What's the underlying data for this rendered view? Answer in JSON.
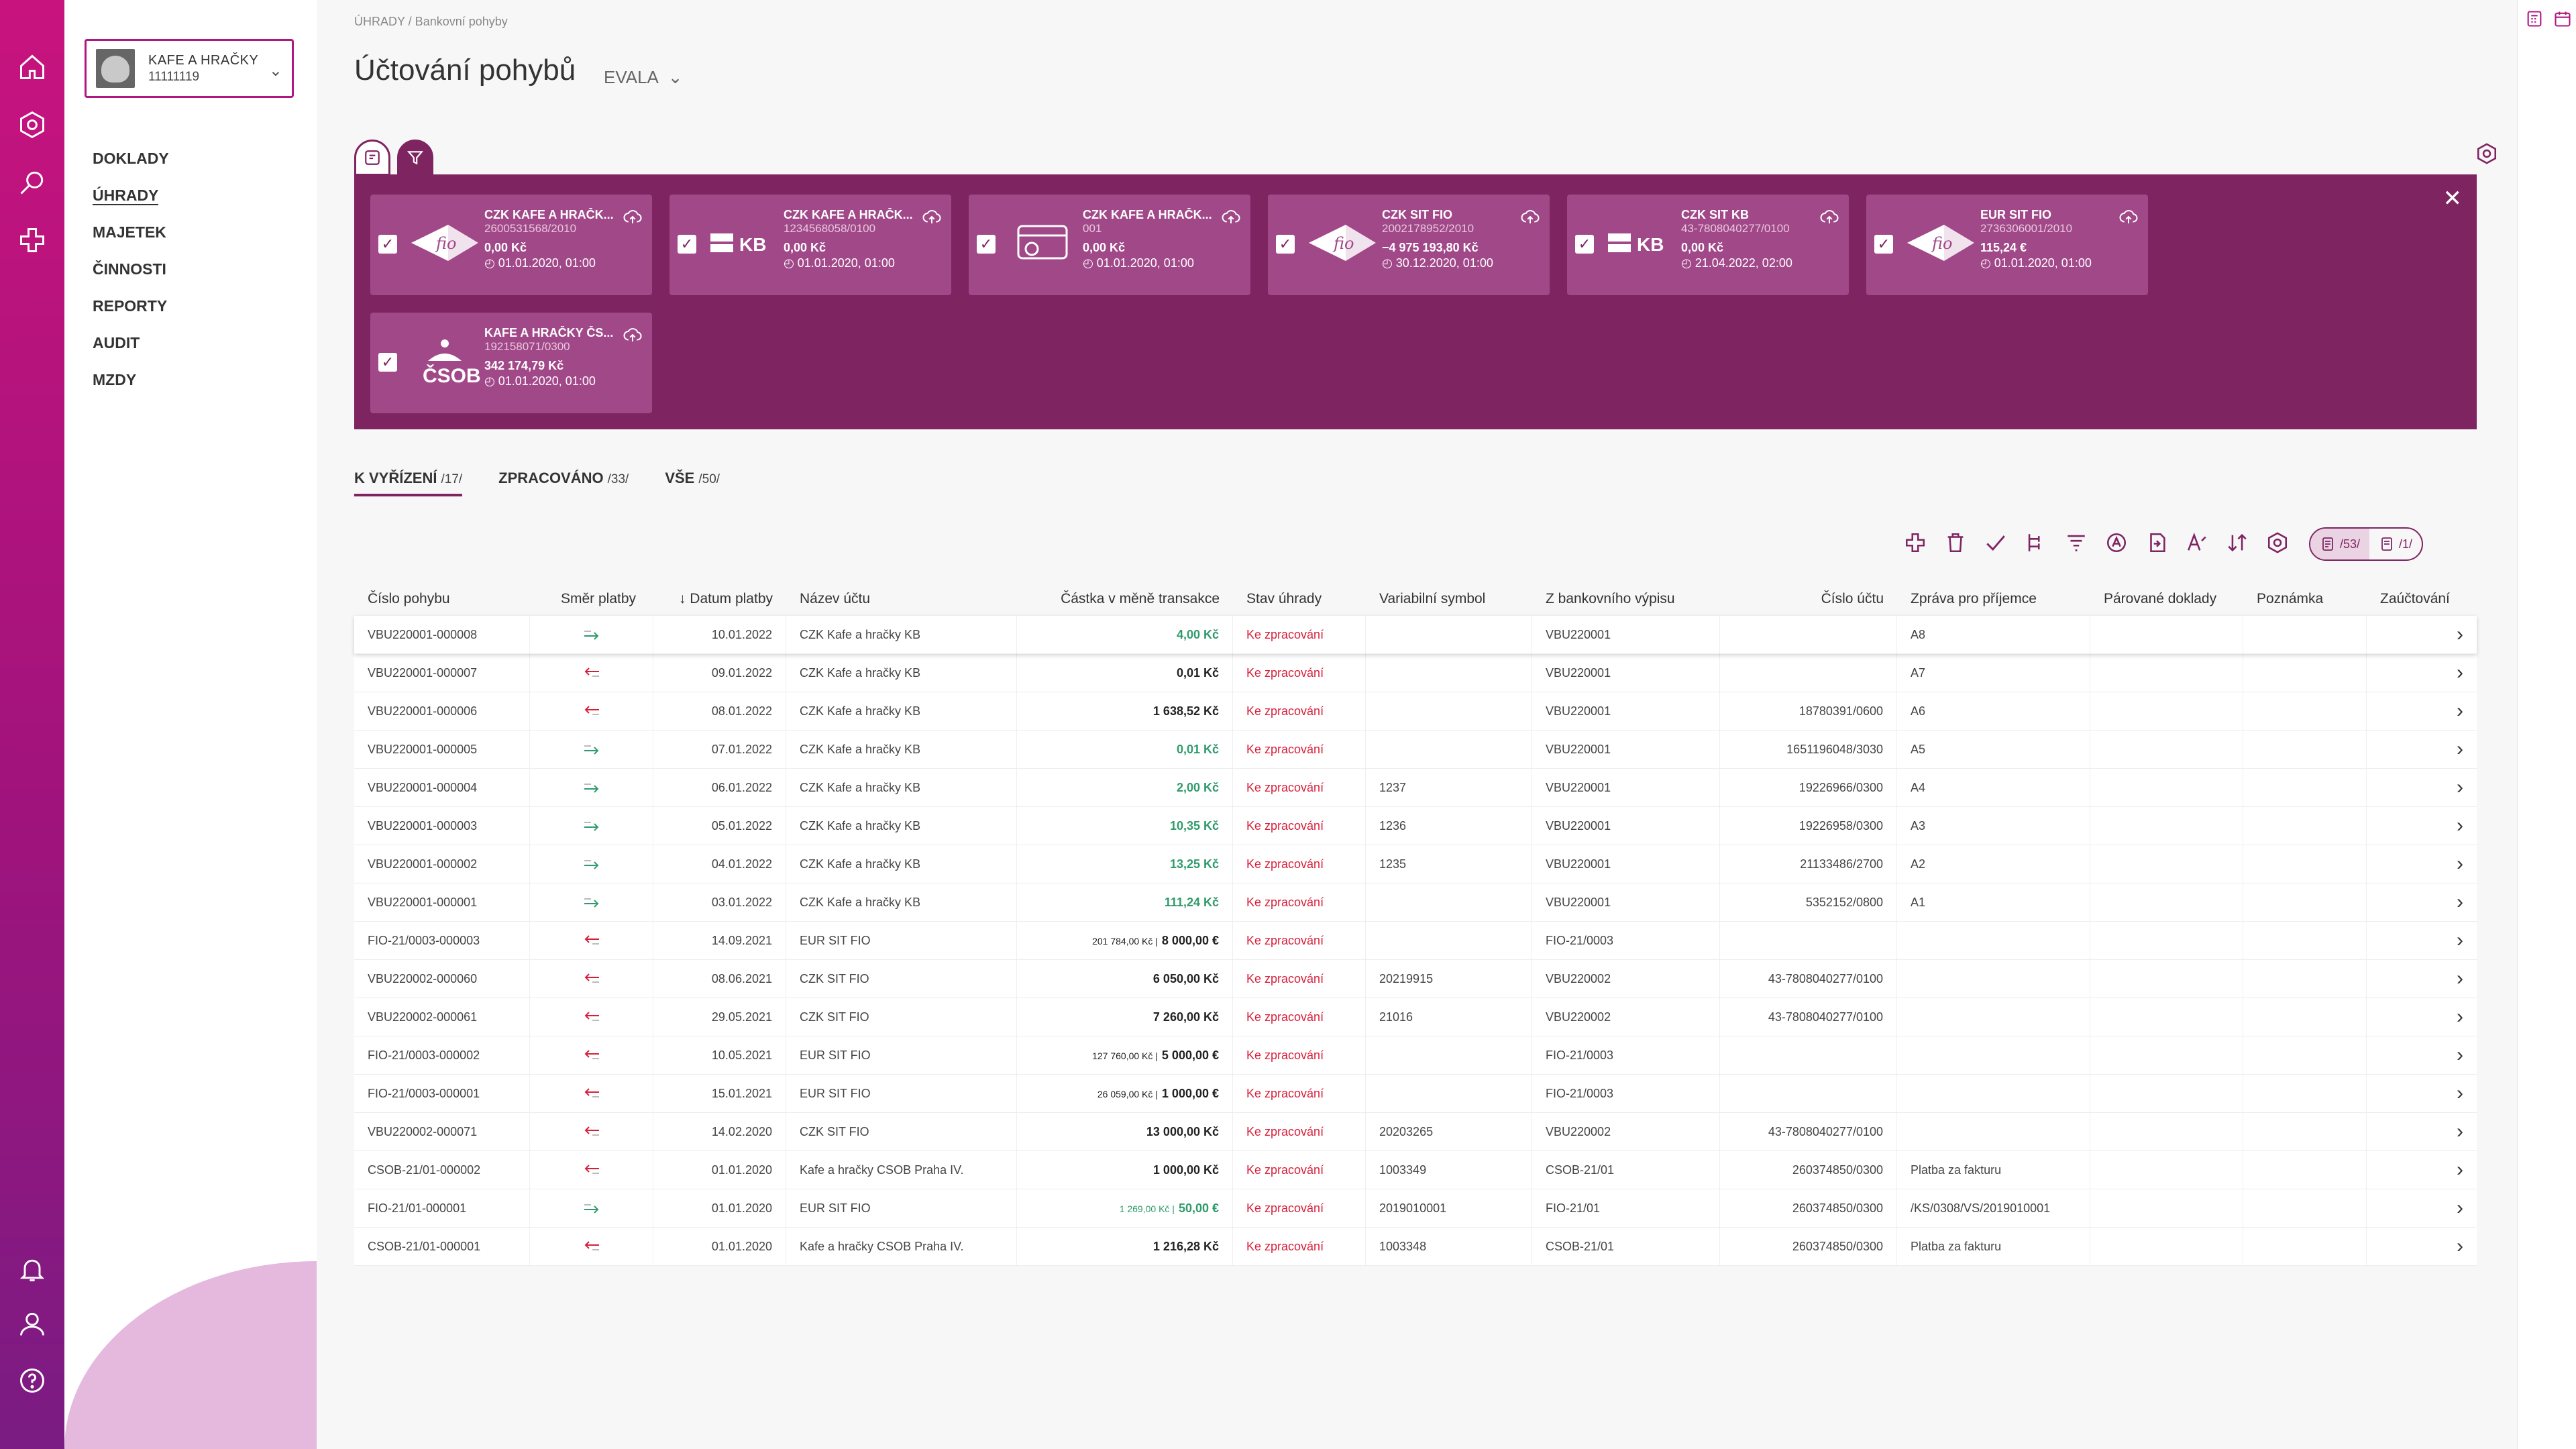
{
  "rail": {
    "icons_top": [
      "home-icon",
      "settings-icon",
      "search-icon",
      "add-icon"
    ],
    "icons_bottom": [
      "bell-icon",
      "user-icon",
      "help-icon"
    ]
  },
  "org": {
    "name": "KAFE A HRAČKY",
    "id": "11111119"
  },
  "nav": [
    "DOKLADY",
    "ÚHRADY",
    "MAJETEK",
    "ČINNOSTI",
    "REPORTY",
    "AUDIT",
    "MZDY"
  ],
  "breadcrumb": "ÚHRADY  /  Bankovní pohyby",
  "title": "Účtování pohybů",
  "subtitle": "EVALA",
  "banks": [
    {
      "name": "CZK KAFE A HRAČK...",
      "account": "2600531568/2010",
      "balance": "0,00 Kč",
      "date": "01.01.2020, 01:00",
      "logo": "FIO"
    },
    {
      "name": "CZK KAFE A HRAČK...",
      "account": "1234568058/0100",
      "balance": "0,00 Kč",
      "date": "01.01.2020, 01:00",
      "logo": "KB"
    },
    {
      "name": "CZK KAFE A HRAČK...",
      "account": "001",
      "balance": "0,00 Kč",
      "date": "01.01.2020, 01:00",
      "logo": "CARD"
    },
    {
      "name": "CZK SIT FIO",
      "account": "2002178952/2010",
      "balance": "−4 975 193,80 Kč",
      "date": "30.12.2020, 01:00",
      "logo": "FIO"
    },
    {
      "name": "CZK SIT KB",
      "account": "43-7808040277/0100",
      "balance": "0,00 Kč",
      "date": "21.04.2022, 02:00",
      "logo": "KB"
    },
    {
      "name": "EUR SIT FIO",
      "account": "2736306001/2010",
      "balance": "115,24 €",
      "date": "01.01.2020, 01:00",
      "logo": "FIO"
    },
    {
      "name": "KAFE A HRAČKY ČS...",
      "account": "192158071/0300",
      "balance": "342 174,79 Kč",
      "date": "01.01.2020, 01:00",
      "logo": "CSOB"
    }
  ],
  "tabs": [
    {
      "label": "K VYŘÍZENÍ",
      "count": "/17/"
    },
    {
      "label": "ZPRACOVÁNO",
      "count": "/33/"
    },
    {
      "label": "VŠE",
      "count": "/50/"
    }
  ],
  "view_toggle": [
    {
      "count": "/53/"
    },
    {
      "count": "/1/"
    }
  ],
  "columns": [
    "Číslo pohybu",
    "Směr platby",
    "↓ Datum platby",
    "Název účtu",
    "Částka v měně transakce",
    "Stav úhrady",
    "Variabilní symbol",
    "Z bankovního výpisu",
    "Číslo účtu",
    "Zpráva pro příjemce",
    "Párované doklady",
    "Poznámka",
    "Zaúčtování"
  ],
  "rows": [
    {
      "id": "VBU220001-000008",
      "dir": "in",
      "date": "10.01.2022",
      "account": "CZK Kafe a hračky KB",
      "amount_small": "",
      "amount": "4,00 Kč",
      "status": "Ke zpracování",
      "vs": "",
      "statement": "VBU220001",
      "acc_no": "",
      "msg": "A8"
    },
    {
      "id": "VBU220001-000007",
      "dir": "out",
      "date": "09.01.2022",
      "account": "CZK Kafe a hračky KB",
      "amount_small": "",
      "amount": "0,01 Kč",
      "status": "Ke zpracování",
      "vs": "",
      "statement": "VBU220001",
      "acc_no": "",
      "msg": "A7"
    },
    {
      "id": "VBU220001-000006",
      "dir": "out",
      "date": "08.01.2022",
      "account": "CZK Kafe a hračky KB",
      "amount_small": "",
      "amount": "1 638,52 Kč",
      "status": "Ke zpracování",
      "vs": "",
      "statement": "VBU220001",
      "acc_no": "18780391/0600",
      "msg": "A6"
    },
    {
      "id": "VBU220001-000005",
      "dir": "in",
      "date": "07.01.2022",
      "account": "CZK Kafe a hračky KB",
      "amount_small": "",
      "amount": "0,01 Kč",
      "status": "Ke zpracování",
      "vs": "",
      "statement": "VBU220001",
      "acc_no": "1651196048/3030",
      "msg": "A5"
    },
    {
      "id": "VBU220001-000004",
      "dir": "in",
      "date": "06.01.2022",
      "account": "CZK Kafe a hračky KB",
      "amount_small": "",
      "amount": "2,00 Kč",
      "status": "Ke zpracování",
      "vs": "1237",
      "statement": "VBU220001",
      "acc_no": "19226966/0300",
      "msg": "A4"
    },
    {
      "id": "VBU220001-000003",
      "dir": "in",
      "date": "05.01.2022",
      "account": "CZK Kafe a hračky KB",
      "amount_small": "",
      "amount": "10,35 Kč",
      "status": "Ke zpracování",
      "vs": "1236",
      "statement": "VBU220001",
      "acc_no": "19226958/0300",
      "msg": "A3"
    },
    {
      "id": "VBU220001-000002",
      "dir": "in",
      "date": "04.01.2022",
      "account": "CZK Kafe a hračky KB",
      "amount_small": "",
      "amount": "13,25 Kč",
      "status": "Ke zpracování",
      "vs": "1235",
      "statement": "VBU220001",
      "acc_no": "21133486/2700",
      "msg": "A2"
    },
    {
      "id": "VBU220001-000001",
      "dir": "in",
      "date": "03.01.2022",
      "account": "CZK Kafe a hračky KB",
      "amount_small": "",
      "amount": "111,24 Kč",
      "status": "Ke zpracování",
      "vs": "",
      "statement": "VBU220001",
      "acc_no": "5352152/0800",
      "msg": "A1"
    },
    {
      "id": "FIO-21/0003-000003",
      "dir": "out",
      "date": "14.09.2021",
      "account": "EUR SIT FIO",
      "amount_small": "201 784,00 Kč |",
      "amount": "8 000,00 €",
      "status": "Ke zpracování",
      "vs": "",
      "statement": "FIO-21/0003",
      "acc_no": "",
      "msg": ""
    },
    {
      "id": "VBU220002-000060",
      "dir": "out",
      "date": "08.06.2021",
      "account": "CZK SIT FIO",
      "amount_small": "",
      "amount": "6 050,00 Kč",
      "status": "Ke zpracování",
      "vs": "20219915",
      "statement": "VBU220002",
      "acc_no": "43-7808040277/0100",
      "msg": ""
    },
    {
      "id": "VBU220002-000061",
      "dir": "out",
      "date": "29.05.2021",
      "account": "CZK SIT FIO",
      "amount_small": "",
      "amount": "7 260,00 Kč",
      "status": "Ke zpracování",
      "vs": "21016",
      "statement": "VBU220002",
      "acc_no": "43-7808040277/0100",
      "msg": ""
    },
    {
      "id": "FIO-21/0003-000002",
      "dir": "out",
      "date": "10.05.2021",
      "account": "EUR SIT FIO",
      "amount_small": "127 760,00 Kč |",
      "amount": "5 000,00 €",
      "status": "Ke zpracování",
      "vs": "",
      "statement": "FIO-21/0003",
      "acc_no": "",
      "msg": ""
    },
    {
      "id": "FIO-21/0003-000001",
      "dir": "out",
      "date": "15.01.2021",
      "account": "EUR SIT FIO",
      "amount_small": "26 059,00 Kč |",
      "amount": "1 000,00 €",
      "status": "Ke zpracování",
      "vs": "",
      "statement": "FIO-21/0003",
      "acc_no": "",
      "msg": ""
    },
    {
      "id": "VBU220002-000071",
      "dir": "out",
      "date": "14.02.2020",
      "account": "CZK SIT FIO",
      "amount_small": "",
      "amount": "13 000,00 Kč",
      "status": "Ke zpracování",
      "vs": "20203265",
      "statement": "VBU220002",
      "acc_no": "43-7808040277/0100",
      "msg": ""
    },
    {
      "id": "CSOB-21/01-000002",
      "dir": "out",
      "date": "01.01.2020",
      "account": "Kafe a hračky CSOB Praha IV.",
      "amount_small": "",
      "amount": "1 000,00 Kč",
      "status": "Ke zpracování",
      "vs": "1003349",
      "statement": "CSOB-21/01",
      "acc_no": "260374850/0300",
      "msg": "Platba za fakturu"
    },
    {
      "id": "FIO-21/01-000001",
      "dir": "in",
      "date": "01.01.2020",
      "account": "EUR SIT FIO",
      "amount_small": "1 269,00 Kč |",
      "amount": "50,00 €",
      "status": "Ke zpracování",
      "vs": "2019010001",
      "statement": "FIO-21/01",
      "acc_no": "260374850/0300",
      "msg": "/KS/0308/VS/2019010001"
    },
    {
      "id": "CSOB-21/01-000001",
      "dir": "out",
      "date": "01.01.2020",
      "account": "Kafe a hračky CSOB Praha IV.",
      "amount_small": "",
      "amount": "1 216,28 Kč",
      "status": "Ke zpracování",
      "vs": "1003348",
      "statement": "CSOB-21/01",
      "acc_no": "260374850/0300",
      "msg": "Platba za fakturu"
    }
  ],
  "colors": {
    "brand": "#7e2461",
    "rail_top": "#c8137e",
    "status_red": "#d81f3a",
    "income_green": "#2e9a6b"
  }
}
